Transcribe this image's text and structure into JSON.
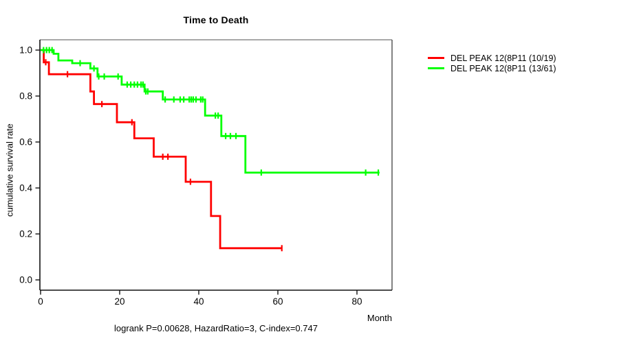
{
  "window": {
    "kind": "statistical-plot",
    "background": "#ffffff"
  },
  "legend": {
    "items": [
      {
        "label": "DEL PEAK 12(8P11 (10/19)",
        "color": "#ff0000"
      },
      {
        "label": "DEL PEAK 12(8P11 (13/61)",
        "color": "#00ff00"
      }
    ]
  },
  "chart_data": {
    "type": "line",
    "subtype": "kaplan-meier-step-survival",
    "title": "Time to Death",
    "xlabel": "Month",
    "ylabel": "cumulative survival rate",
    "footer": "logrank P=0.00628, HazardRatio=3, C-index=0.747",
    "xticks": [
      "0",
      "20",
      "40",
      "60",
      "80"
    ],
    "xtick_values": [
      0,
      20,
      40,
      60,
      80
    ],
    "yticks": [
      "1.0",
      "0.8",
      "0.6",
      "0.4",
      "0.2",
      "0.0"
    ],
    "ytick_values": [
      1.0,
      0.8,
      0.6,
      0.4,
      0.2,
      0.0
    ],
    "xlim": [
      0,
      88.9
    ],
    "ylim": [
      0,
      1.045
    ],
    "grid": false,
    "legend_position": "right-outside",
    "series": [
      {
        "name": "DEL PEAK 12(8P11 (10/19)",
        "color": "#ff0000",
        "events_total": "10/19",
        "levels": [
          [
            0.0,
            0.8,
            1.0
          ],
          [
            0.8,
            2.1,
            0.947
          ],
          [
            2.1,
            12.6,
            0.895
          ],
          [
            12.6,
            13.5,
            0.82
          ],
          [
            13.5,
            19.3,
            0.765
          ],
          [
            19.3,
            23.7,
            0.686
          ],
          [
            23.7,
            28.6,
            0.616
          ],
          [
            28.6,
            36.7,
            0.536
          ],
          [
            36.7,
            43.1,
            0.427
          ],
          [
            43.1,
            45.4,
            0.278
          ],
          [
            45.4,
            61.0,
            0.138
          ]
        ],
        "censors": [
          [
            1.3,
            0.947
          ],
          [
            6.8,
            0.895
          ],
          [
            15.5,
            0.765
          ],
          [
            23.1,
            0.686
          ],
          [
            30.9,
            0.536
          ],
          [
            32.2,
            0.536
          ],
          [
            37.9,
            0.427
          ],
          [
            61.0,
            0.138
          ]
        ]
      },
      {
        "name": "DEL PEAK 12(8P11 (13/61)",
        "color": "#00ff00",
        "events_total": "13/61",
        "levels": [
          [
            0.0,
            3.3,
            1.0
          ],
          [
            3.3,
            4.5,
            0.984
          ],
          [
            4.5,
            8.0,
            0.955
          ],
          [
            8.0,
            12.6,
            0.943
          ],
          [
            12.6,
            14.4,
            0.92
          ],
          [
            14.4,
            20.5,
            0.885
          ],
          [
            20.5,
            26.3,
            0.85
          ],
          [
            26.3,
            30.9,
            0.82
          ],
          [
            30.9,
            41.6,
            0.785
          ],
          [
            41.6,
            45.7,
            0.715
          ],
          [
            45.7,
            51.8,
            0.626
          ],
          [
            51.8,
            85.7,
            0.467
          ]
        ],
        "censors": [
          [
            0.75,
            1.0
          ],
          [
            1.5,
            1.0
          ],
          [
            2.2,
            1.0
          ],
          [
            2.9,
            1.0
          ],
          [
            10.0,
            0.943
          ],
          [
            13.5,
            0.92
          ],
          [
            14.7,
            0.885
          ],
          [
            16.1,
            0.885
          ],
          [
            19.6,
            0.885
          ],
          [
            21.9,
            0.85
          ],
          [
            22.8,
            0.85
          ],
          [
            23.7,
            0.85
          ],
          [
            24.5,
            0.85
          ],
          [
            25.4,
            0.85
          ],
          [
            25.9,
            0.85
          ],
          [
            26.6,
            0.82
          ],
          [
            27.1,
            0.82
          ],
          [
            31.5,
            0.785
          ],
          [
            33.7,
            0.785
          ],
          [
            35.3,
            0.785
          ],
          [
            36.2,
            0.785
          ],
          [
            37.6,
            0.785
          ],
          [
            38.1,
            0.785
          ],
          [
            38.6,
            0.785
          ],
          [
            39.3,
            0.785
          ],
          [
            40.5,
            0.785
          ],
          [
            41.0,
            0.785
          ],
          [
            44.2,
            0.715
          ],
          [
            44.9,
            0.715
          ],
          [
            46.8,
            0.626
          ],
          [
            48.0,
            0.626
          ],
          [
            49.4,
            0.626
          ],
          [
            55.8,
            0.467
          ],
          [
            82.2,
            0.467
          ],
          [
            85.4,
            0.467
          ]
        ]
      }
    ]
  }
}
